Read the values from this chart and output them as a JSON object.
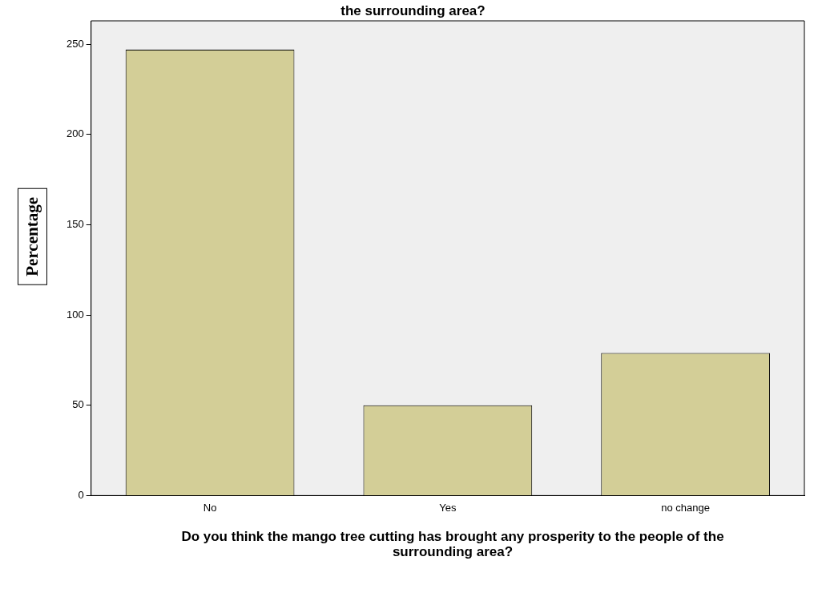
{
  "chart_data": {
    "type": "bar",
    "title": "the surrounding area?",
    "xlabel": "Do you think the mango tree cutting has brought any prosperity to the people of the surrounding area?",
    "ylabel": "Percentage",
    "categories": [
      "No",
      "Yes",
      "no change"
    ],
    "values": [
      247,
      50,
      79
    ],
    "color": "#d3ce97",
    "ylim": [
      0,
      263
    ],
    "yticks": [
      0,
      50,
      100,
      150,
      200,
      250
    ]
  }
}
